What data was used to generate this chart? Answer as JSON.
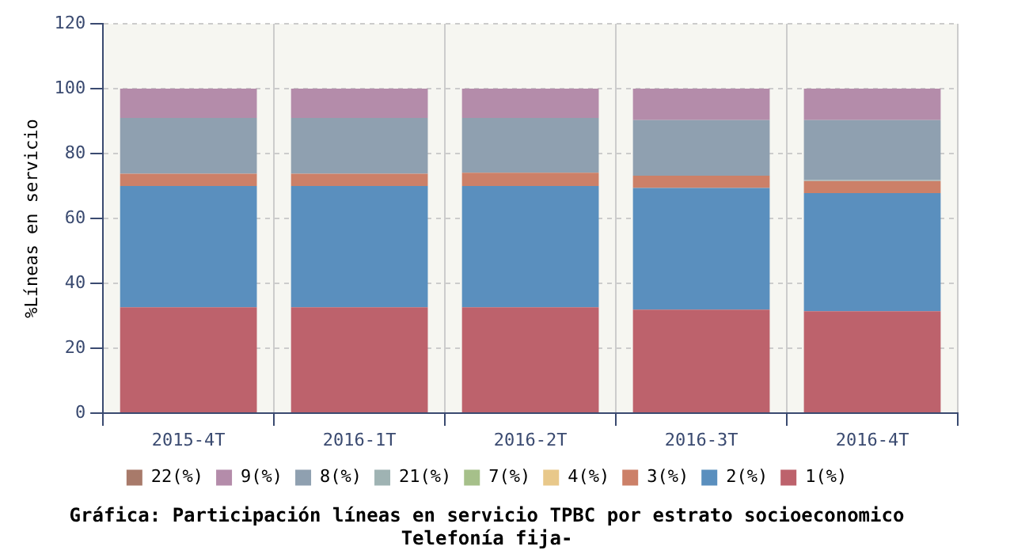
{
  "chart_data": {
    "type": "bar",
    "stacked": true,
    "title": [
      "Gráfica: Participación líneas en servicio TPBC por estrato socioeconomico",
      "Telefonía fija-"
    ],
    "ylabel": "%Líneas en servicio",
    "categories": [
      "2015-4T",
      "2016-1T",
      "2016-2T",
      "2016-3T",
      "2016-4T"
    ],
    "series": [
      {
        "name": "1(%)",
        "color": "#bd626c",
        "values": [
          32.6,
          32.6,
          32.6,
          31.9,
          31.4
        ]
      },
      {
        "name": "2(%)",
        "color": "#5a8fbe",
        "values": [
          37.4,
          37.4,
          37.4,
          37.5,
          36.4
        ]
      },
      {
        "name": "3(%)",
        "color": "#cc8068",
        "values": [
          3.8,
          3.8,
          4.1,
          3.8,
          3.7
        ]
      },
      {
        "name": "4(%)",
        "color": "#e8c88a",
        "values": [
          0,
          0,
          0,
          0,
          0
        ]
      },
      {
        "name": "7(%)",
        "color": "#a6c08a",
        "values": [
          0,
          0,
          0,
          0,
          0
        ]
      },
      {
        "name": "21(%)",
        "color": "#9fb3b3",
        "values": [
          0,
          0,
          0,
          0,
          0.3
        ]
      },
      {
        "name": "8(%)",
        "color": "#8fa0b0",
        "values": [
          17.2,
          17.2,
          16.9,
          17.1,
          18.5
        ]
      },
      {
        "name": "9(%)",
        "color": "#b48caa",
        "values": [
          9,
          9,
          9,
          9.7,
          9.7
        ]
      },
      {
        "name": "22(%)",
        "color": "#a87a6a",
        "values": [
          0,
          0,
          0,
          0,
          0
        ]
      }
    ],
    "ylim": [
      0,
      120
    ],
    "yticks": [
      0,
      20,
      40,
      60,
      80,
      100,
      120
    ],
    "grid": true,
    "legend": "bottom"
  }
}
